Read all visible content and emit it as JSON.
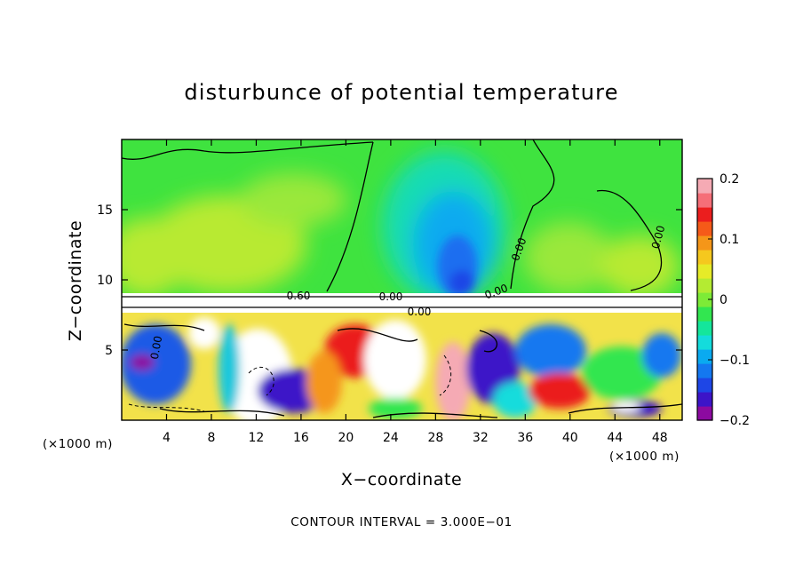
{
  "chart_data": {
    "type": "heatmap",
    "title": "disturbunce of potential temperature",
    "xlabel": "X−coordinate",
    "ylabel": "Z−coordinate",
    "x_unit": "(×1000 m)",
    "y_unit": "(×1000 m)",
    "xlim": [
      0,
      50
    ],
    "ylim": [
      0,
      20
    ],
    "x_ticks": [
      4,
      8,
      12,
      16,
      20,
      24,
      28,
      32,
      36,
      40,
      44,
      48
    ],
    "y_ticks": [
      5,
      10,
      15
    ],
    "colorbar": {
      "min": -0.2,
      "max": 0.2,
      "ticks": [
        -0.2,
        -0.1,
        0,
        0.1,
        0.2
      ],
      "tick_labels": [
        "−0.2",
        "−0.1",
        "0",
        "0.1",
        "0.2"
      ],
      "colors": [
        "#8c0aa0",
        "#3c14c8",
        "#1e46e6",
        "#1478f0",
        "#0aaaf0",
        "#14dcdc",
        "#14e69b",
        "#32e650",
        "#7deb37",
        "#b4eb32",
        "#e6eb28",
        "#f5c81e",
        "#f59619",
        "#f55a19",
        "#eb1e1e",
        "#f56e78",
        "#f5aab4"
      ]
    },
    "contour_labels": [
      "0.00",
      "0.00",
      "0.00",
      "0.60",
      "0.00",
      "0.00",
      "0.00"
    ],
    "contour_interval_text": "CONTOUR INTERVAL = 3.000E−01"
  }
}
